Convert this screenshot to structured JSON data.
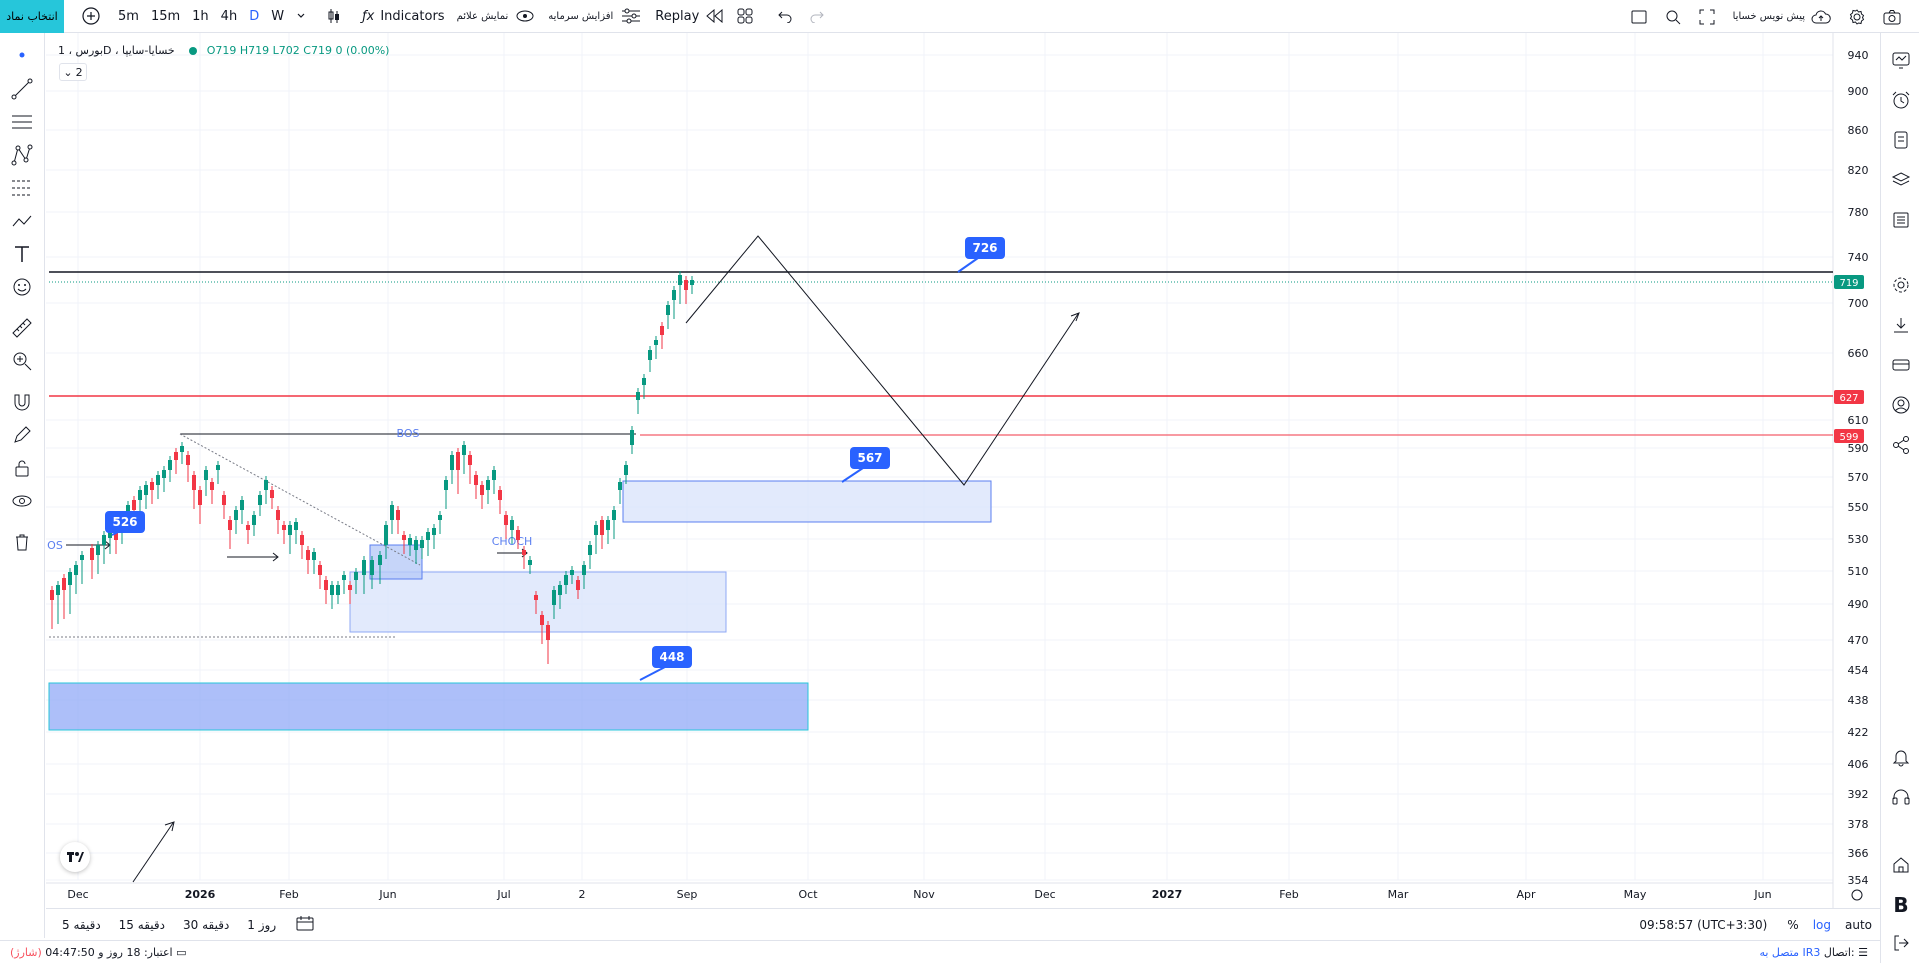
{
  "topbar": {
    "symbol_button": "انتخاب نماد",
    "intervals": [
      "5m",
      "15m",
      "1h",
      "4h",
      "D",
      "W"
    ],
    "active_interval": "D",
    "indicators_label": "Indicators",
    "show_signals_label": "نمایش علائم",
    "capital_increase_label": "افزایش سرمایه",
    "replay_label": "Replay",
    "presale_label": "پیش نویس خسایا"
  },
  "legend": {
    "name": "بورس ، 1D ، خسایا-سایپا",
    "open": "O719",
    "high": "H719",
    "low": "L702",
    "close": "C719",
    "change": "0 (0.00%)",
    "collapse_count": "2"
  },
  "price_axis": {
    "ticks": [
      "940",
      "900",
      "860",
      "820",
      "780",
      "740",
      "700",
      "660",
      "610",
      "590",
      "570",
      "550",
      "530",
      "510",
      "490",
      "470",
      "454",
      "438",
      "422",
      "406",
      "392",
      "378",
      "366",
      "354"
    ],
    "labels": [
      {
        "value": "719",
        "color": "#089981"
      },
      {
        "value": "627",
        "color": "#f23645"
      },
      {
        "value": "599",
        "color": "#f23645"
      }
    ]
  },
  "time_axis": {
    "ticks": [
      "Dec",
      "2026",
      "Feb",
      "Jun",
      "Jul",
      "2",
      "Sep",
      "Oct",
      "Nov",
      "Dec",
      "2027",
      "Feb",
      "Mar",
      "Apr",
      "May",
      "Jun"
    ]
  },
  "annotations": {
    "callouts": [
      "726",
      "567",
      "526",
      "448"
    ],
    "labels": [
      "BOS",
      "CHOCH",
      "OS"
    ]
  },
  "bottombar": {
    "timeframes": [
      "5 دقیقه",
      "15 دقیقه",
      "30 دقیقه",
      "1 روز"
    ],
    "clock": "09:58:57 (UTC+3:30)",
    "percent": "%",
    "log": "log",
    "auto": "auto"
  },
  "statusbar": {
    "credit": "اعتبار: 18 روز و 04:47:50",
    "credit_note": "(شارژ)",
    "connection_label": "اتصال:",
    "connection_value": "متصل به IR3"
  },
  "colors": {
    "accent": "#2962ff",
    "up": "#089981",
    "down": "#f23645",
    "symbol_button": "#26c6da"
  }
}
